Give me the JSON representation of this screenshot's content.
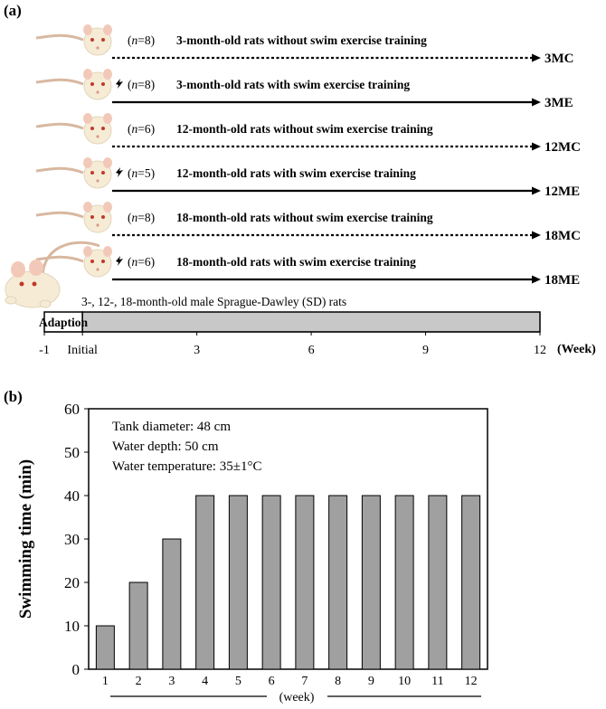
{
  "panel_a": {
    "label": "(a)",
    "groups": [
      {
        "n_prefix": "(",
        "n_var": "n",
        "n_value": "=8)",
        "description": "3-month-old rats without swim exercise training",
        "code": "3MC",
        "exercise": false
      },
      {
        "n_prefix": "(",
        "n_var": "n",
        "n_value": "=8)",
        "description": "3-month-old rats with swim exercise training",
        "code": "3ME",
        "exercise": true
      },
      {
        "n_prefix": "(",
        "n_var": "n",
        "n_value": "=6)",
        "description": "12-month-old rats without swim exercise training",
        "code": "12MC",
        "exercise": false
      },
      {
        "n_prefix": "(",
        "n_var": "n",
        "n_value": "=5)",
        "description": "12-month-old rats with swim exercise training",
        "code": "12ME",
        "exercise": true
      },
      {
        "n_prefix": "(",
        "n_var": "n",
        "n_value": "=8)",
        "description": "18-month-old rats without swim exercise training",
        "code": "18MC",
        "exercise": false
      },
      {
        "n_prefix": "(",
        "n_var": "n",
        "n_value": "=6)",
        "description": "18-month-old rats with swim exercise training",
        "code": "18ME",
        "exercise": true
      }
    ],
    "rat_caption": "3-, 12-, 18-month-old male Sprague-Dawley (SD) rats",
    "timeline": {
      "adaption_label": "Adaption",
      "ticks": [
        {
          "week": -1,
          "label": "-1"
        },
        {
          "week": 0,
          "label": "Initial"
        },
        {
          "week": 3,
          "label": "3"
        },
        {
          "week": 6,
          "label": "6"
        },
        {
          "week": 9,
          "label": "9"
        },
        {
          "week": 12,
          "label": "12"
        }
      ],
      "unit_label": "(Week)",
      "adaption_span": [
        -1,
        0
      ],
      "training_span": [
        0,
        12
      ]
    }
  },
  "panel_b": {
    "label": "(b)",
    "annotations": [
      "Tank diameter: 48 cm",
      "Water depth: 50 cm",
      "Water temperature: 35±1°C"
    ]
  },
  "chart_data": {
    "type": "bar",
    "categories": [
      "1",
      "2",
      "3",
      "4",
      "5",
      "6",
      "7",
      "8",
      "9",
      "10",
      "11",
      "12"
    ],
    "values": [
      10,
      20,
      30,
      40,
      40,
      40,
      40,
      40,
      40,
      40,
      40,
      40
    ],
    "title": "",
    "xlabel": "(week)",
    "ylabel": "Swimming time (min)",
    "ylim": [
      0,
      60
    ],
    "yticks": [
      0,
      10,
      20,
      30,
      40,
      50,
      60
    ],
    "grid": false,
    "bar_color": "#a0a0a0"
  },
  "colors": {
    "bar_fill": "#a0a0a0",
    "training_bar_fill": "#c8c8c8",
    "rat_fur": "#f6ecd6",
    "rat_ear": "#f2c9b8",
    "rat_tail": "#d8b8a0",
    "rat_eye": "#c0392b"
  }
}
